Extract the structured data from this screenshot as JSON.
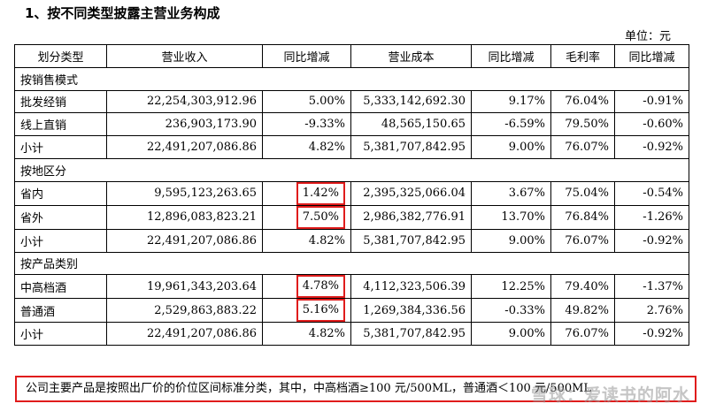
{
  "title": "1、按不同类型披露主营业务构成",
  "unit": "单位：元",
  "headers": [
    "划分类型",
    "营业收入",
    "同比增减",
    "营业成本",
    "同比增减",
    "毛利率",
    "同比增减"
  ],
  "sections": {
    "sales_mode": "按销售模式",
    "region": "按地区分",
    "product": "按产品类别"
  },
  "rows": {
    "wholesale": [
      "批发经销",
      "22,254,303,912.96",
      "5.00%",
      "5,333,142,692.30",
      "9.17%",
      "76.04%",
      "-0.91%"
    ],
    "online": [
      "线上直销",
      "236,903,173.90",
      "-9.33%",
      "48,565,150.65",
      "-6.59%",
      "79.50%",
      "-0.60%"
    ],
    "subtotal1": [
      "小计",
      "22,491,207,086.86",
      "4.82%",
      "5,381,707,842.95",
      "9.00%",
      "76.07%",
      "-0.92%"
    ],
    "in_province": [
      "省内",
      "9,595,123,263.65",
      "1.42%",
      "2,395,325,066.04",
      "3.67%",
      "75.04%",
      "-0.54%"
    ],
    "out_province": [
      "省外",
      "12,896,083,823.21",
      "7.50%",
      "2,986,382,776.91",
      "13.70%",
      "76.84%",
      "-1.26%"
    ],
    "subtotal2": [
      "小计",
      "22,491,207,086.86",
      "4.82%",
      "5,381,707,842.95",
      "9.00%",
      "76.07%",
      "-0.92%"
    ],
    "mid_high": [
      "中高档酒",
      "19,961,343,203.64",
      "4.78%",
      "4,112,323,506.39",
      "12.25%",
      "79.40%",
      "-1.37%"
    ],
    "regular": [
      "普通酒",
      "2,529,863,883.22",
      "5.16%",
      "1,269,384,336.56",
      "-0.33%",
      "49.82%",
      "2.76%"
    ],
    "subtotal3": [
      "小计",
      "22,491,207,086.86",
      "4.82%",
      "5,381,707,842.95",
      "9.00%",
      "76.07%",
      "-0.92%"
    ]
  },
  "note": "公司主要产品是按照出厂价的价位区间标准分类，其中，中高档酒≥100 元/500ML，普通酒＜100 元/500ML",
  "watermark": "雪球：爱读书的阿水",
  "colors": {
    "highlight": "#e01c1c"
  }
}
